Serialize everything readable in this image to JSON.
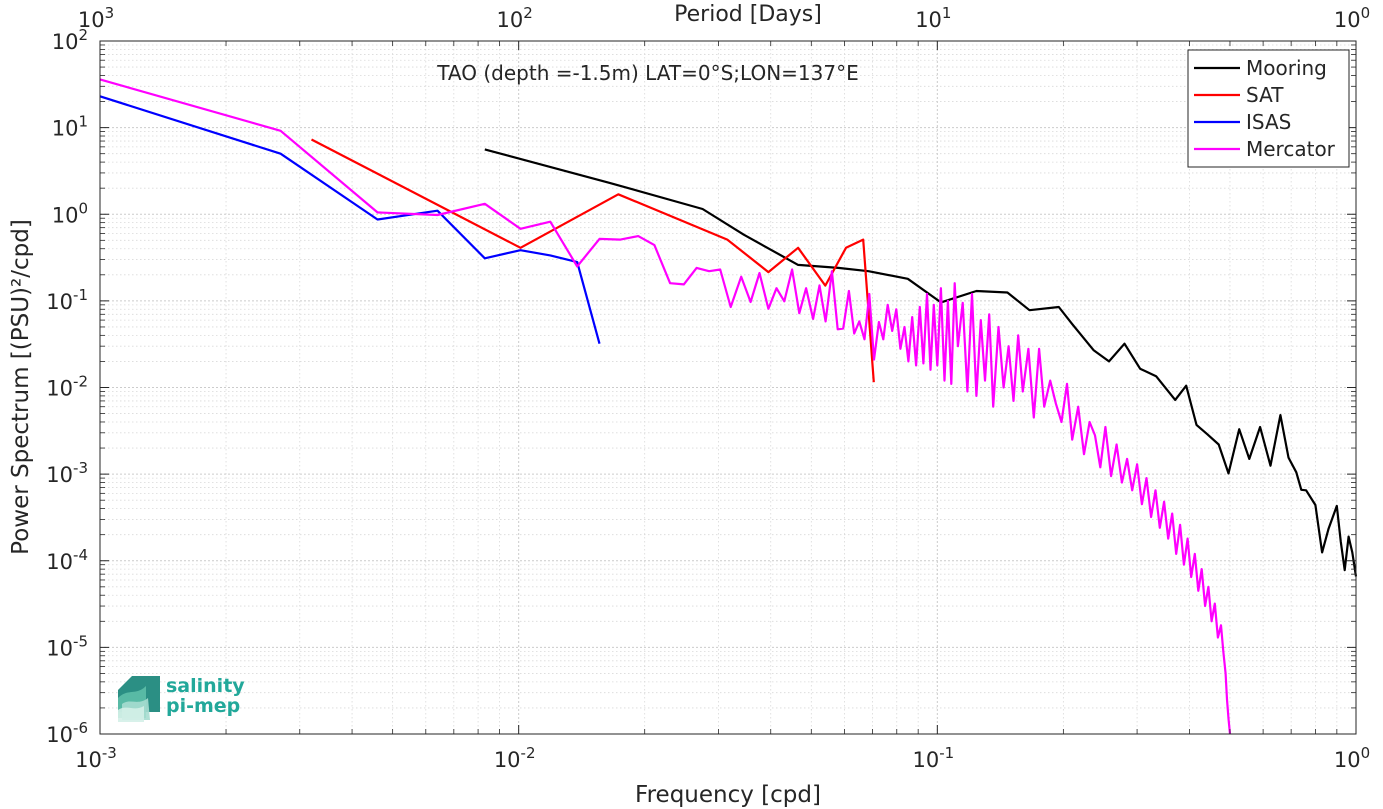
{
  "chart_data": {
    "type": "line",
    "scale": {
      "x": "log",
      "y": "log"
    },
    "xlim": [
      0.001,
      1
    ],
    "ylim": [
      1e-06,
      100
    ],
    "grid": true,
    "legend_position": "top-right",
    "title": "TAO (depth =-1.5m) LAT=0°S;LON=137°E",
    "xlabel": "Frequency [cpd]",
    "ylabel": "Power Spectrum [(PSU)²/cpd]",
    "top_axis_label": "Period [Days]",
    "x_ticks": [
      {
        "value": 0.001,
        "base": "10",
        "exp": "-3"
      },
      {
        "value": 0.01,
        "base": "10",
        "exp": "-2"
      },
      {
        "value": 0.1,
        "base": "10",
        "exp": "-1"
      },
      {
        "value": 1,
        "base": "10",
        "exp": "0"
      }
    ],
    "top_ticks": [
      {
        "value": 0.001,
        "base": "10",
        "exp": "3"
      },
      {
        "value": 0.01,
        "base": "10",
        "exp": "2"
      },
      {
        "value": 0.1,
        "base": "10",
        "exp": "1"
      },
      {
        "value": 1,
        "base": "10",
        "exp": "0"
      }
    ],
    "y_ticks": [
      {
        "value": 100,
        "base": "10",
        "exp": "2"
      },
      {
        "value": 10,
        "base": "10",
        "exp": "1"
      },
      {
        "value": 1,
        "base": "10",
        "exp": "0"
      },
      {
        "value": 0.1,
        "base": "10",
        "exp": "-1"
      },
      {
        "value": 0.01,
        "base": "10",
        "exp": "-2"
      },
      {
        "value": 0.001,
        "base": "10",
        "exp": "-3"
      },
      {
        "value": 0.0001,
        "base": "10",
        "exp": "-4"
      },
      {
        "value": 1e-05,
        "base": "10",
        "exp": "-5"
      },
      {
        "value": 1e-06,
        "base": "10",
        "exp": "-6"
      }
    ],
    "series": [
      {
        "name": "Mooring",
        "color": "#000000",
        "x": [
          0.0083,
          0.0165,
          0.0275,
          0.0345,
          0.0465,
          0.058,
          0.0685,
          0.085,
          0.102,
          0.124,
          0.147,
          0.166,
          0.195,
          0.21,
          0.236,
          0.257,
          0.28,
          0.305,
          0.333,
          0.37,
          0.393,
          0.416,
          0.441,
          0.47,
          0.496,
          0.526,
          0.556,
          0.59,
          0.625,
          0.66,
          0.69,
          0.72,
          0.74,
          0.76,
          0.8,
          0.83,
          0.86,
          0.9,
          0.92,
          0.94,
          0.96,
          0.98,
          1.0
        ],
        "y": [
          5.6,
          2.3,
          1.15,
          0.58,
          0.26,
          0.24,
          0.22,
          0.18,
          0.096,
          0.13,
          0.125,
          0.078,
          0.085,
          0.054,
          0.027,
          0.02,
          0.032,
          0.0165,
          0.0135,
          0.0072,
          0.0105,
          0.0037,
          0.0029,
          0.0022,
          0.00102,
          0.0033,
          0.0015,
          0.0035,
          0.00125,
          0.0048,
          0.00155,
          0.00105,
          0.00066,
          0.00065,
          0.00044,
          0.000125,
          0.000235,
          0.00043,
          0.000165,
          7.8e-05,
          0.00019,
          0.000125,
          6.6e-05
        ]
      },
      {
        "name": "SAT",
        "color": "#ff0000",
        "x": [
          0.0032,
          0.0101,
          0.0173,
          0.0315,
          0.0395,
          0.0465,
          0.054,
          0.0605,
          0.0665,
          0.0705
        ],
        "y": [
          7.3,
          0.41,
          1.7,
          0.51,
          0.215,
          0.41,
          0.15,
          0.41,
          0.51,
          0.0115
        ]
      },
      {
        "name": "ISAS",
        "color": "#0000ff",
        "x": [
          0.001,
          0.0027,
          0.0046,
          0.0064,
          0.0083,
          0.0101,
          0.0119,
          0.0138,
          0.0156
        ],
        "y": [
          23,
          5.0,
          0.87,
          1.1,
          0.31,
          0.385,
          0.335,
          0.28,
          0.032
        ]
      },
      {
        "name": "Mercator",
        "color": "#ff00ff",
        "x": [
          0.001,
          0.0027,
          0.0046,
          0.0064,
          0.0083,
          0.0101,
          0.0119,
          0.0138,
          0.0156,
          0.0175,
          0.0193,
          0.0211,
          0.023,
          0.0248,
          0.0266,
          0.0285,
          0.0303,
          0.0321,
          0.034,
          0.0358,
          0.0376,
          0.0395,
          0.0413,
          0.0431,
          0.045,
          0.0468,
          0.0486,
          0.0505,
          0.0523,
          0.0541,
          0.056,
          0.0578,
          0.0596,
          0.0615,
          0.0633,
          0.0651,
          0.067,
          0.0688,
          0.0706,
          0.0725,
          0.0743,
          0.0761,
          0.078,
          0.0798,
          0.0816,
          0.0835,
          0.0853,
          0.0871,
          0.089,
          0.0908,
          0.0926,
          0.0945,
          0.0963,
          0.0981,
          0.1,
          0.102,
          0.104,
          0.106,
          0.108,
          0.11,
          0.112,
          0.115,
          0.118,
          0.121,
          0.124,
          0.127,
          0.13,
          0.133,
          0.136,
          0.14,
          0.144,
          0.148,
          0.152,
          0.156,
          0.16,
          0.165,
          0.17,
          0.175,
          0.18,
          0.186,
          0.192,
          0.198,
          0.204,
          0.21,
          0.217,
          0.224,
          0.231,
          0.238,
          0.245,
          0.252,
          0.26,
          0.268,
          0.276,
          0.284,
          0.292,
          0.3,
          0.308,
          0.316,
          0.324,
          0.332,
          0.34,
          0.348,
          0.356,
          0.364,
          0.372,
          0.38,
          0.388,
          0.396,
          0.404,
          0.412,
          0.42,
          0.428,
          0.436,
          0.444,
          0.452,
          0.46,
          0.468,
          0.476,
          0.482,
          0.488,
          0.492,
          0.496,
          0.5
        ],
        "y": [
          36,
          9.2,
          1.05,
          0.98,
          1.32,
          0.68,
          0.82,
          0.25,
          0.52,
          0.51,
          0.56,
          0.44,
          0.16,
          0.155,
          0.24,
          0.22,
          0.23,
          0.085,
          0.19,
          0.097,
          0.21,
          0.081,
          0.14,
          0.099,
          0.23,
          0.072,
          0.14,
          0.062,
          0.151,
          0.058,
          0.22,
          0.047,
          0.048,
          0.13,
          0.042,
          0.058,
          0.036,
          0.12,
          0.021,
          0.057,
          0.036,
          0.09,
          0.045,
          0.08,
          0.028,
          0.05,
          0.02,
          0.065,
          0.018,
          0.085,
          0.019,
          0.12,
          0.016,
          0.09,
          0.018,
          0.14,
          0.012,
          0.1,
          0.011,
          0.16,
          0.03,
          0.095,
          0.009,
          0.12,
          0.008,
          0.06,
          0.012,
          0.07,
          0.006,
          0.05,
          0.01,
          0.03,
          0.007,
          0.04,
          0.009,
          0.028,
          0.0045,
          0.028,
          0.006,
          0.012,
          0.0065,
          0.004,
          0.011,
          0.0025,
          0.006,
          0.0017,
          0.004,
          0.0028,
          0.0012,
          0.0035,
          0.00095,
          0.0022,
          0.0008,
          0.0015,
          0.00065,
          0.0013,
          0.00045,
          0.0009,
          0.00032,
          0.00065,
          0.00024,
          0.00048,
          0.00018,
          0.00035,
          0.00012,
          0.00026,
          9e-05,
          0.00018,
          6.5e-05,
          0.00012,
          4.5e-05,
          8e-05,
          3e-05,
          5e-05,
          2e-05,
          3.2e-05,
          1.3e-05,
          1.8e-05,
          9e-06,
          5e-06,
          2.5e-06,
          1.5e-06,
          1e-06
        ]
      }
    ]
  },
  "logo": {
    "line1": "salinity",
    "line2": "pi-mep",
    "color": "#22a89a"
  }
}
